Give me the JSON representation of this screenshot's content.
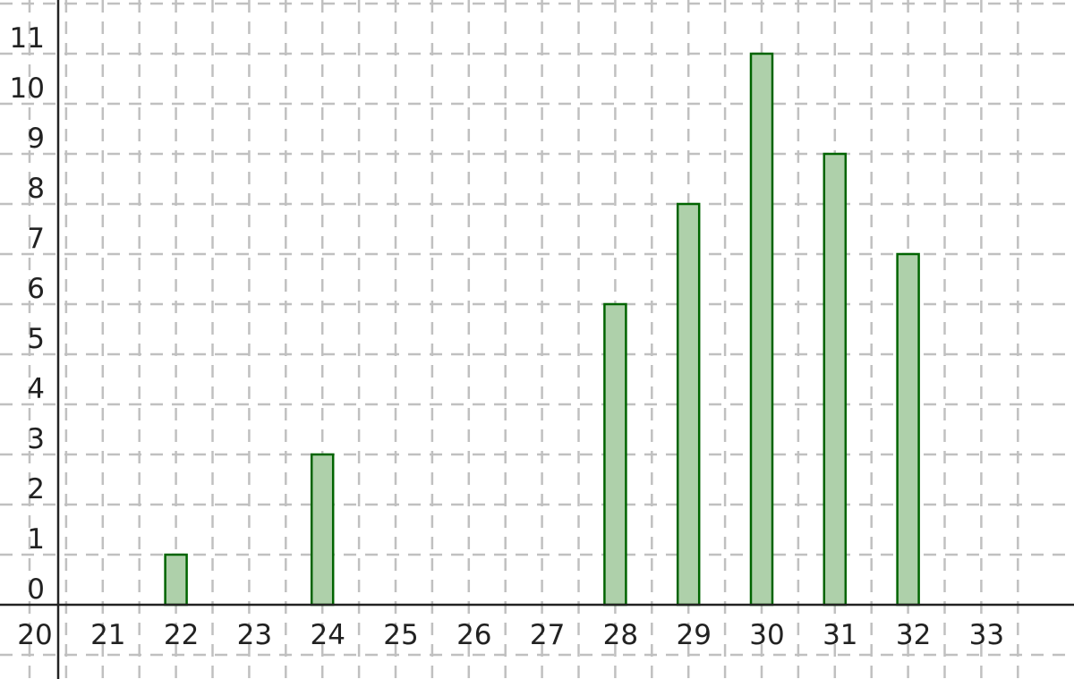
{
  "chart_data": {
    "type": "bar",
    "title": "",
    "xlabel": "",
    "ylabel": "",
    "x": [
      22,
      24,
      28,
      29,
      30,
      31,
      32
    ],
    "values": [
      1,
      3,
      6,
      8,
      11,
      9,
      7
    ],
    "xlim": [
      19.6,
      33.9
    ],
    "ylim": [
      -1.4,
      12.1
    ],
    "x_ticks": [
      "20",
      "21",
      "22",
      "23",
      "24",
      "25",
      "26",
      "27",
      "28",
      "29",
      "30",
      "31",
      "32",
      "33"
    ],
    "y_ticks": [
      "0",
      "1",
      "2",
      "3",
      "4",
      "5",
      "6",
      "7",
      "8",
      "9",
      "10",
      "11"
    ],
    "grid": true,
    "bar_fill": "#aed0aa",
    "bar_stroke": "#006400",
    "grid_color": "#c0c0c0",
    "axis_color": "#222222"
  }
}
